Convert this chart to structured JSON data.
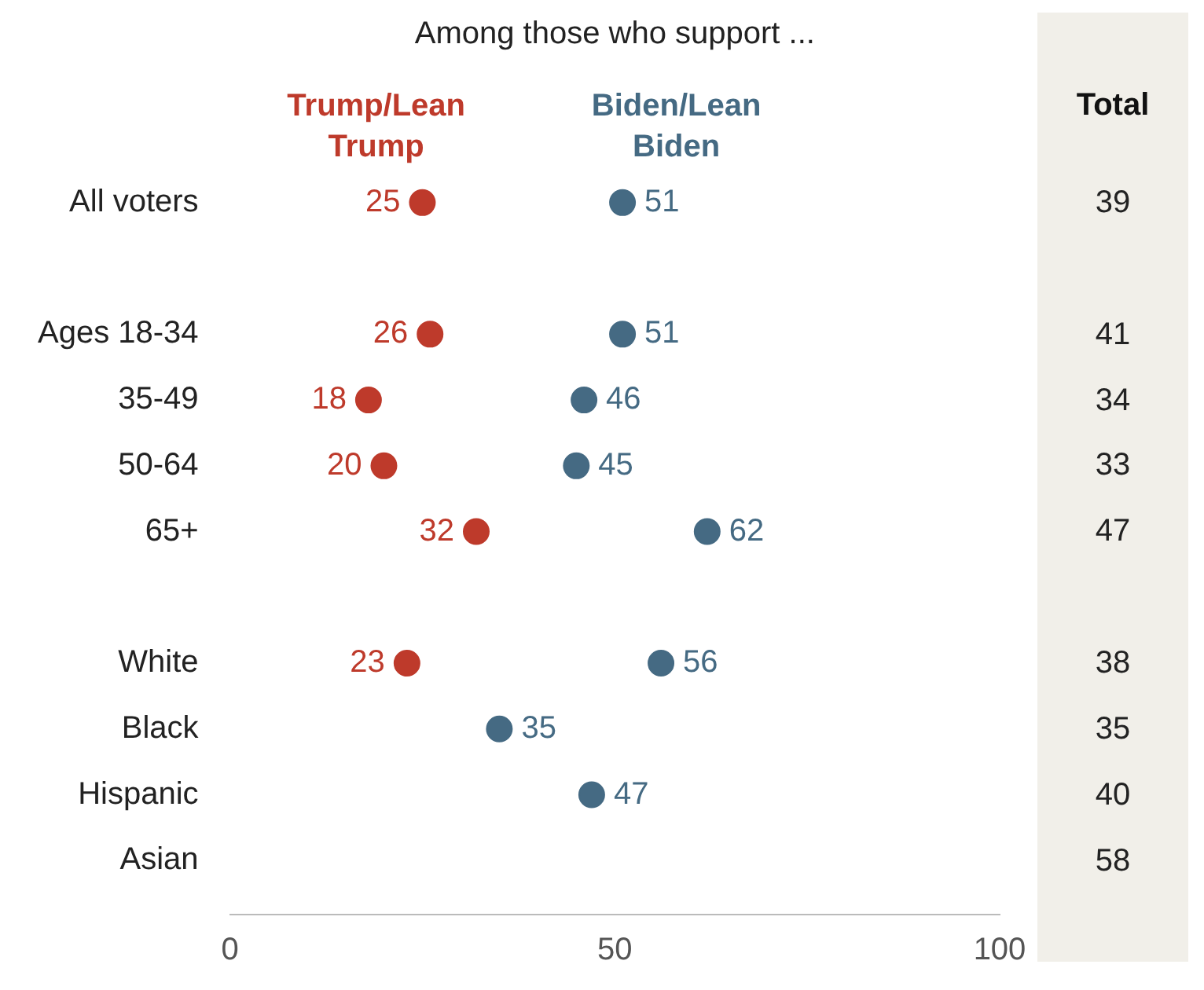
{
  "chart_data": [
    {
      "type": "scatter",
      "title": "Among those who support ...",
      "orientation": "horizontal",
      "categories": [
        "All voters",
        null,
        "Ages 18-34",
        "35-49",
        "50-64",
        "65+",
        null,
        "White",
        "Black",
        "Hispanic",
        "Asian"
      ],
      "series": [
        {
          "name": "Trump/Lean Trump",
          "color": "#be3a2b",
          "values": [
            25,
            null,
            26,
            18,
            20,
            32,
            null,
            23,
            null,
            null,
            null
          ]
        },
        {
          "name": "Biden/Lean Biden",
          "color": "#456a83",
          "values": [
            51,
            null,
            51,
            46,
            45,
            62,
            null,
            56,
            35,
            47,
            null
          ]
        }
      ],
      "xlim": [
        0,
        100
      ],
      "xticks": [
        0,
        50,
        100
      ],
      "grid": false,
      "legend": "top",
      "marker": "circle",
      "data_labels": true
    },
    {
      "type": "other",
      "title": "Total",
      "categories": [
        null,
        null,
        null,
        null,
        null,
        null,
        null,
        null,
        null,
        null,
        null
      ],
      "values": [
        39,
        null,
        41,
        34,
        33,
        47,
        null,
        38,
        35,
        40,
        58
      ],
      "data_labels": true
    }
  ]
}
